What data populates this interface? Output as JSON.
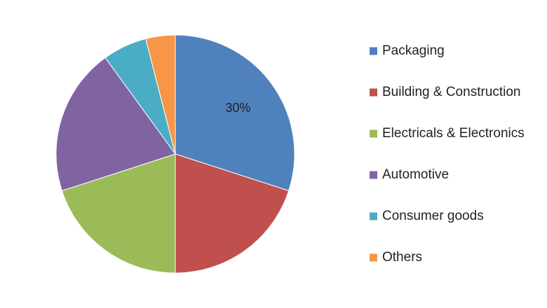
{
  "chart_data": {
    "type": "pie",
    "categories": [
      "Packaging",
      "Building & Construction",
      "Electricals & Electronics",
      "Automotive",
      "Consumer goods",
      "Others"
    ],
    "values": [
      30,
      20,
      20,
      20,
      6,
      4
    ],
    "colors": [
      "#4f81bd",
      "#c0504d",
      "#9bbb59",
      "#8064a2",
      "#4bacc6",
      "#f79646"
    ],
    "data_labels": [
      "30%",
      "",
      "",
      "",
      "",
      ""
    ],
    "legend_position": "right",
    "title": ""
  }
}
